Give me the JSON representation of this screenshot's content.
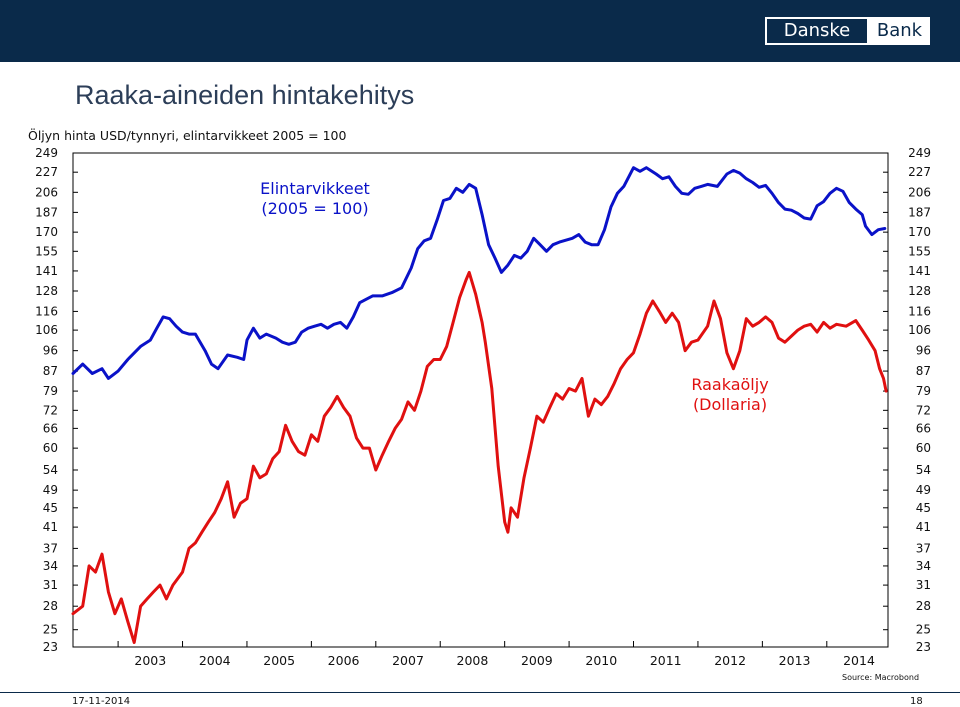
{
  "brand": {
    "word1": "Danske",
    "word2": "Bank"
  },
  "page_title": "Raaka-aineiden hintakehitys",
  "subtitle": "Öljyn hinta USD/tynnyri, elintarvikkeet 2005 = 100",
  "footer": {
    "source": "Source: Macrobond",
    "date": "17-11-2014",
    "page_number": "18"
  },
  "colors": {
    "food_line": "#0a12c8",
    "oil_line": "#e01010",
    "header_bar": "#0a2a4a",
    "title_text": "#2c3e58"
  },
  "chart_data": {
    "type": "line",
    "y_scale": "log",
    "ylim": [
      23,
      249
    ],
    "y_ticks": [
      "249",
      "227",
      "206",
      "187",
      "170",
      "155",
      "141",
      "128",
      "116",
      "106",
      "96",
      "87",
      "79",
      "72",
      "66",
      "60",
      "54",
      "49",
      "45",
      "41",
      "37",
      "34",
      "31",
      "28",
      "25",
      "23"
    ],
    "x_ticks": [
      "2003",
      "2004",
      "2005",
      "2006",
      "2007",
      "2008",
      "2009",
      "2010",
      "2011",
      "2012",
      "2013",
      "2014"
    ],
    "xlim": [
      2002.3,
      2014.95
    ],
    "series": [
      {
        "name_lines": [
          "Elintarvikkeet",
          "(2005 = 100)"
        ],
        "color": "#0a12c8",
        "points": [
          [
            2002.3,
            86
          ],
          [
            2002.45,
            90
          ],
          [
            2002.6,
            86
          ],
          [
            2002.75,
            88
          ],
          [
            2002.85,
            84
          ],
          [
            2003.0,
            87
          ],
          [
            2003.15,
            92
          ],
          [
            2003.35,
            98
          ],
          [
            2003.5,
            101
          ],
          [
            2003.6,
            107
          ],
          [
            2003.7,
            113
          ],
          [
            2003.8,
            112
          ],
          [
            2003.9,
            108
          ],
          [
            2004.0,
            105
          ],
          [
            2004.1,
            104
          ],
          [
            2004.2,
            104
          ],
          [
            2004.35,
            96
          ],
          [
            2004.45,
            90
          ],
          [
            2004.55,
            88
          ],
          [
            2004.7,
            94
          ],
          [
            2004.85,
            93
          ],
          [
            2004.95,
            92
          ],
          [
            2005.0,
            101
          ],
          [
            2005.1,
            107
          ],
          [
            2005.2,
            102
          ],
          [
            2005.3,
            104
          ],
          [
            2005.45,
            102
          ],
          [
            2005.55,
            100
          ],
          [
            2005.65,
            99
          ],
          [
            2005.75,
            100
          ],
          [
            2005.85,
            105
          ],
          [
            2005.95,
            107
          ],
          [
            2006.05,
            108
          ],
          [
            2006.15,
            109
          ],
          [
            2006.25,
            107
          ],
          [
            2006.35,
            109
          ],
          [
            2006.45,
            110
          ],
          [
            2006.55,
            107
          ],
          [
            2006.65,
            113
          ],
          [
            2006.75,
            121
          ],
          [
            2006.85,
            123
          ],
          [
            2006.95,
            125
          ],
          [
            2007.1,
            125
          ],
          [
            2007.25,
            127
          ],
          [
            2007.4,
            130
          ],
          [
            2007.55,
            143
          ],
          [
            2007.65,
            157
          ],
          [
            2007.75,
            163
          ],
          [
            2007.85,
            165
          ],
          [
            2007.95,
            180
          ],
          [
            2008.05,
            198
          ],
          [
            2008.15,
            200
          ],
          [
            2008.25,
            210
          ],
          [
            2008.35,
            206
          ],
          [
            2008.45,
            214
          ],
          [
            2008.55,
            210
          ],
          [
            2008.65,
            185
          ],
          [
            2008.75,
            160
          ],
          [
            2008.85,
            150
          ],
          [
            2008.95,
            140
          ],
          [
            2009.05,
            145
          ],
          [
            2009.15,
            152
          ],
          [
            2009.25,
            150
          ],
          [
            2009.35,
            155
          ],
          [
            2009.45,
            165
          ],
          [
            2009.55,
            160
          ],
          [
            2009.65,
            155
          ],
          [
            2009.75,
            160
          ],
          [
            2009.85,
            162
          ],
          [
            2010.05,
            165
          ],
          [
            2010.15,
            168
          ],
          [
            2010.25,
            162
          ],
          [
            2010.35,
            160
          ],
          [
            2010.45,
            160
          ],
          [
            2010.55,
            172
          ],
          [
            2010.65,
            192
          ],
          [
            2010.75,
            205
          ],
          [
            2010.85,
            212
          ],
          [
            2011.0,
            232
          ],
          [
            2011.1,
            228
          ],
          [
            2011.2,
            232
          ],
          [
            2011.35,
            225
          ],
          [
            2011.45,
            220
          ],
          [
            2011.55,
            222
          ],
          [
            2011.65,
            212
          ],
          [
            2011.75,
            205
          ],
          [
            2011.85,
            204
          ],
          [
            2011.95,
            210
          ],
          [
            2012.05,
            212
          ],
          [
            2012.15,
            214
          ],
          [
            2012.3,
            212
          ],
          [
            2012.45,
            225
          ],
          [
            2012.55,
            229
          ],
          [
            2012.65,
            226
          ],
          [
            2012.75,
            220
          ],
          [
            2012.85,
            216
          ],
          [
            2012.95,
            211
          ],
          [
            2013.05,
            213
          ],
          [
            2013.15,
            205
          ],
          [
            2013.25,
            196
          ],
          [
            2013.35,
            190
          ],
          [
            2013.45,
            189
          ],
          [
            2013.55,
            186
          ],
          [
            2013.65,
            182
          ],
          [
            2013.75,
            181
          ],
          [
            2013.85,
            193
          ],
          [
            2013.95,
            197
          ],
          [
            2014.05,
            205
          ],
          [
            2014.15,
            210
          ],
          [
            2014.25,
            207
          ],
          [
            2014.35,
            196
          ],
          [
            2014.45,
            190
          ],
          [
            2014.55,
            185
          ],
          [
            2014.6,
            175
          ],
          [
            2014.7,
            168
          ],
          [
            2014.8,
            172
          ],
          [
            2014.9,
            173
          ]
        ]
      },
      {
        "name_lines": [
          "Raakaöljy",
          "(Dollaria)"
        ],
        "color": "#e01010",
        "points": [
          [
            2002.3,
            27
          ],
          [
            2002.45,
            28
          ],
          [
            2002.55,
            34
          ],
          [
            2002.65,
            33
          ],
          [
            2002.75,
            36
          ],
          [
            2002.85,
            30
          ],
          [
            2002.95,
            27
          ],
          [
            2003.05,
            29
          ],
          [
            2003.15,
            26
          ],
          [
            2003.25,
            23.5
          ],
          [
            2003.35,
            28
          ],
          [
            2003.45,
            29
          ],
          [
            2003.55,
            30
          ],
          [
            2003.65,
            31
          ],
          [
            2003.75,
            29
          ],
          [
            2003.85,
            31
          ],
          [
            2004.0,
            33
          ],
          [
            2004.1,
            37
          ],
          [
            2004.2,
            38
          ],
          [
            2004.3,
            40
          ],
          [
            2004.4,
            42
          ],
          [
            2004.5,
            44
          ],
          [
            2004.6,
            47
          ],
          [
            2004.7,
            51
          ],
          [
            2004.8,
            43
          ],
          [
            2004.9,
            46
          ],
          [
            2005.0,
            47
          ],
          [
            2005.1,
            55
          ],
          [
            2005.2,
            52
          ],
          [
            2005.3,
            53
          ],
          [
            2005.4,
            57
          ],
          [
            2005.5,
            59
          ],
          [
            2005.6,
            67
          ],
          [
            2005.7,
            62
          ],
          [
            2005.8,
            59
          ],
          [
            2005.9,
            58
          ],
          [
            2006.0,
            64
          ],
          [
            2006.1,
            62
          ],
          [
            2006.2,
            70
          ],
          [
            2006.3,
            73
          ],
          [
            2006.4,
            77
          ],
          [
            2006.5,
            73
          ],
          [
            2006.6,
            70
          ],
          [
            2006.7,
            63
          ],
          [
            2006.8,
            60
          ],
          [
            2006.9,
            60
          ],
          [
            2007.0,
            54
          ],
          [
            2007.1,
            58
          ],
          [
            2007.2,
            62
          ],
          [
            2007.3,
            66
          ],
          [
            2007.4,
            69
          ],
          [
            2007.5,
            75
          ],
          [
            2007.6,
            72
          ],
          [
            2007.7,
            79
          ],
          [
            2007.8,
            89
          ],
          [
            2007.9,
            92
          ],
          [
            2008.0,
            92
          ],
          [
            2008.1,
            98
          ],
          [
            2008.2,
            110
          ],
          [
            2008.3,
            124
          ],
          [
            2008.4,
            135
          ],
          [
            2008.45,
            140
          ],
          [
            2008.55,
            126
          ],
          [
            2008.65,
            110
          ],
          [
            2008.7,
            100
          ],
          [
            2008.8,
            80
          ],
          [
            2008.9,
            55
          ],
          [
            2009.0,
            42
          ],
          [
            2009.05,
            40
          ],
          [
            2009.1,
            45
          ],
          [
            2009.2,
            43
          ],
          [
            2009.3,
            52
          ],
          [
            2009.4,
            60
          ],
          [
            2009.5,
            70
          ],
          [
            2009.6,
            68
          ],
          [
            2009.7,
            73
          ],
          [
            2009.8,
            78
          ],
          [
            2009.9,
            76
          ],
          [
            2010.0,
            80
          ],
          [
            2010.1,
            79
          ],
          [
            2010.2,
            84
          ],
          [
            2010.3,
            70
          ],
          [
            2010.4,
            76
          ],
          [
            2010.5,
            74
          ],
          [
            2010.6,
            77
          ],
          [
            2010.7,
            82
          ],
          [
            2010.8,
            88
          ],
          [
            2010.9,
            92
          ],
          [
            2011.0,
            95
          ],
          [
            2011.1,
            104
          ],
          [
            2011.2,
            115
          ],
          [
            2011.3,
            122
          ],
          [
            2011.4,
            116
          ],
          [
            2011.5,
            110
          ],
          [
            2011.6,
            115
          ],
          [
            2011.7,
            110
          ],
          [
            2011.8,
            96
          ],
          [
            2011.9,
            100
          ],
          [
            2012.0,
            101
          ],
          [
            2012.15,
            108
          ],
          [
            2012.25,
            122
          ],
          [
            2012.35,
            112
          ],
          [
            2012.45,
            95
          ],
          [
            2012.55,
            88
          ],
          [
            2012.65,
            96
          ],
          [
            2012.75,
            112
          ],
          [
            2012.85,
            108
          ],
          [
            2012.95,
            110
          ],
          [
            2013.05,
            113
          ],
          [
            2013.15,
            110
          ],
          [
            2013.25,
            102
          ],
          [
            2013.35,
            100
          ],
          [
            2013.45,
            103
          ],
          [
            2013.55,
            106
          ],
          [
            2013.65,
            108
          ],
          [
            2013.75,
            109
          ],
          [
            2013.85,
            105
          ],
          [
            2013.95,
            110
          ],
          [
            2014.05,
            107
          ],
          [
            2014.15,
            109
          ],
          [
            2014.3,
            108
          ],
          [
            2014.45,
            111
          ],
          [
            2014.55,
            106
          ],
          [
            2014.65,
            101
          ],
          [
            2014.75,
            96
          ],
          [
            2014.82,
            88
          ],
          [
            2014.88,
            84
          ],
          [
            2014.92,
            79
          ]
        ]
      }
    ]
  }
}
